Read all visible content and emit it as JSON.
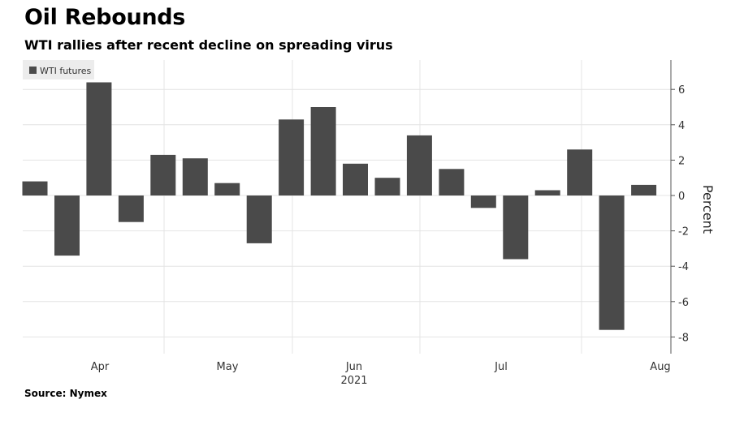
{
  "chart_data": {
    "type": "bar",
    "title": "Oil Rebounds",
    "subtitle": "WTI rallies after recent decline on spreading virus",
    "ylabel": "Percent",
    "xlabel": "",
    "ylim": [
      -9,
      7.7
    ],
    "yticks": [
      -8,
      -6,
      -4,
      -2,
      0,
      2,
      4,
      6
    ],
    "ytick_labels": [
      "-8",
      "-6",
      "-4",
      "-2",
      "0",
      "2",
      "4",
      "6"
    ],
    "x_month_labels": [
      "Apr",
      "May",
      "Jun",
      "Jul",
      "Aug"
    ],
    "x_year_label": "2021",
    "grid": true,
    "legend_position": "top-left",
    "series": [
      {
        "name": "WTI futures",
        "color": "#4a4a4a",
        "values": [
          0.8,
          -3.4,
          6.4,
          -1.5,
          2.3,
          2.1,
          0.7,
          -2.7,
          4.3,
          5.0,
          1.8,
          1.0,
          3.4,
          1.5,
          -0.7,
          -3.6,
          0.3,
          2.6,
          -7.6,
          0.6
        ]
      }
    ]
  },
  "source": "Source: Nymex"
}
